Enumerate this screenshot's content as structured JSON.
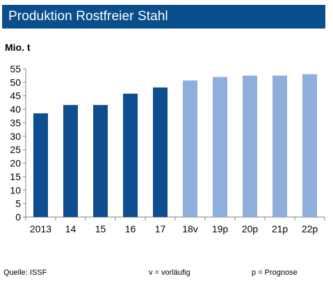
{
  "header": {
    "title": "Produktion Rostfreier Stahl"
  },
  "unit_label": "Mio. t",
  "footer": {
    "source": "Quelle: ISSF",
    "note_v": "v = vorläufig",
    "note_p": "p = Prognose"
  },
  "colors": {
    "title_bg": "#0a4e8e",
    "actual": "#0e4d8f",
    "forecast": "#8eaedb"
  },
  "chart_data": {
    "type": "bar",
    "categories": [
      "2013",
      "14",
      "15",
      "16",
      "17",
      "18v",
      "19p",
      "20p",
      "21p",
      "22p"
    ],
    "values": [
      38.5,
      41.6,
      41.6,
      45.8,
      48.1,
      50.7,
      52.0,
      52.5,
      52.5,
      53.0
    ],
    "bar_kind": [
      "actual",
      "actual",
      "actual",
      "actual",
      "actual",
      "forecast",
      "forecast",
      "forecast",
      "forecast",
      "forecast"
    ],
    "ylim": [
      0,
      55
    ],
    "yticks": [
      0,
      5,
      10,
      15,
      20,
      25,
      30,
      35,
      40,
      45,
      50,
      55
    ],
    "grid": false,
    "legend": "none"
  }
}
